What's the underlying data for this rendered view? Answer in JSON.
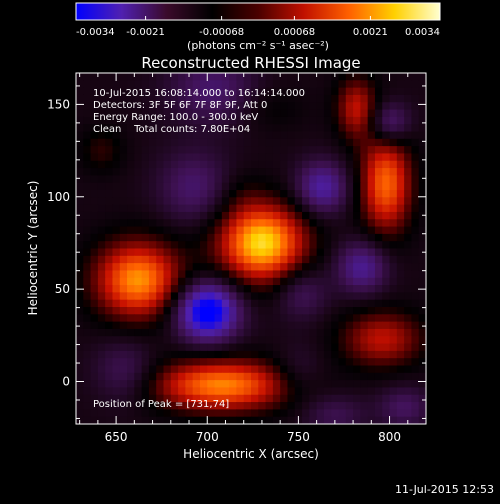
{
  "colorbar": {
    "tick_labels": [
      "-0.0034",
      "-0.0021",
      "-0.00068",
      "0.00068",
      "0.0021",
      "0.0034"
    ],
    "unit_label": "(photons cm⁻² s⁻¹ asec⁻²)",
    "range": [
      -0.0034,
      0.0034
    ],
    "gradient_colors": [
      "#0000ff",
      "#5020b0",
      "#3a0a2a",
      "#000000",
      "#4a0000",
      "#c01000",
      "#ff6000",
      "#ffd000",
      "#ffffd0"
    ]
  },
  "title": "Reconstructed RHESSI Image",
  "annotations": {
    "time_range": "10-Jul-2015 16:08:14.000 to 16:14:14.000",
    "detectors": "Detectors: 3F 5F 6F 7F 8F 9F, Att 0",
    "energy": "Energy Range: 100.0 - 300.0 keV",
    "clean": "Clean    Total counts: 7.80E+04",
    "peak": "Position of Peak = [731,74]"
  },
  "footer": {
    "timestamp": "11-Jul-2015 12:53"
  },
  "chart_data": {
    "type": "heatmap",
    "title": "Reconstructed RHESSI Image",
    "xlabel": "Heliocentric X (arcsec)",
    "ylabel": "Heliocentric Y (arcsec)",
    "xlim": [
      628,
      820
    ],
    "ylim": [
      -23,
      167
    ],
    "x_ticks": [
      650,
      700,
      750,
      800
    ],
    "y_ticks": [
      0,
      50,
      100,
      150
    ],
    "peak_position": [
      731,
      74
    ],
    "blobs": [
      {
        "x": 730,
        "y": 75,
        "sx": 17,
        "sy": 15,
        "amp": 1.0
      },
      {
        "x": 662,
        "y": 55,
        "sx": 17,
        "sy": 15,
        "amp": 0.85
      },
      {
        "x": 708,
        "y": -2,
        "sx": 27,
        "sy": 10,
        "amp": 0.82
      },
      {
        "x": 798,
        "y": 107,
        "sx": 10,
        "sy": 19,
        "amp": 0.75
      },
      {
        "x": 782,
        "y": 148,
        "sx": 8,
        "sy": 12,
        "amp": 0.5
      },
      {
        "x": 796,
        "y": 23,
        "sx": 16,
        "sy": 11,
        "amp": 0.5
      },
      {
        "x": 642,
        "y": 125,
        "sx": 9,
        "sy": 9,
        "amp": 0.2
      },
      {
        "x": 735,
        "y": 148,
        "sx": 14,
        "sy": 9,
        "amp": 0.12
      },
      {
        "x": 718,
        "y": 102,
        "sx": 9,
        "sy": 9,
        "amp": 0.1
      },
      {
        "x": 700,
        "y": 38,
        "sx": 12,
        "sy": 11,
        "amp": -1.0
      },
      {
        "x": 763,
        "y": 105,
        "sx": 10,
        "sy": 10,
        "amp": -0.55
      },
      {
        "x": 785,
        "y": 62,
        "sx": 10,
        "sy": 10,
        "amp": -0.5
      },
      {
        "x": 800,
        "y": 140,
        "sx": 8,
        "sy": 8,
        "amp": -0.45
      },
      {
        "x": 693,
        "y": 105,
        "sx": 14,
        "sy": 14,
        "amp": -0.35
      },
      {
        "x": 703,
        "y": 158,
        "sx": 17,
        "sy": 13,
        "amp": -0.35
      },
      {
        "x": 752,
        "y": 48,
        "sx": 10,
        "sy": 10,
        "amp": -0.3
      },
      {
        "x": 655,
        "y": 5,
        "sx": 12,
        "sy": 12,
        "amp": -0.3
      },
      {
        "x": 808,
        "y": -14,
        "sx": 10,
        "sy": 8,
        "amp": -0.3
      },
      {
        "x": 770,
        "y": -18,
        "sx": 12,
        "sy": 8,
        "amp": -0.25
      },
      {
        "x": 750,
        "y": 5,
        "sx": 10,
        "sy": 10,
        "amp": -0.2
      }
    ],
    "background_level": -0.12,
    "grid": false
  }
}
